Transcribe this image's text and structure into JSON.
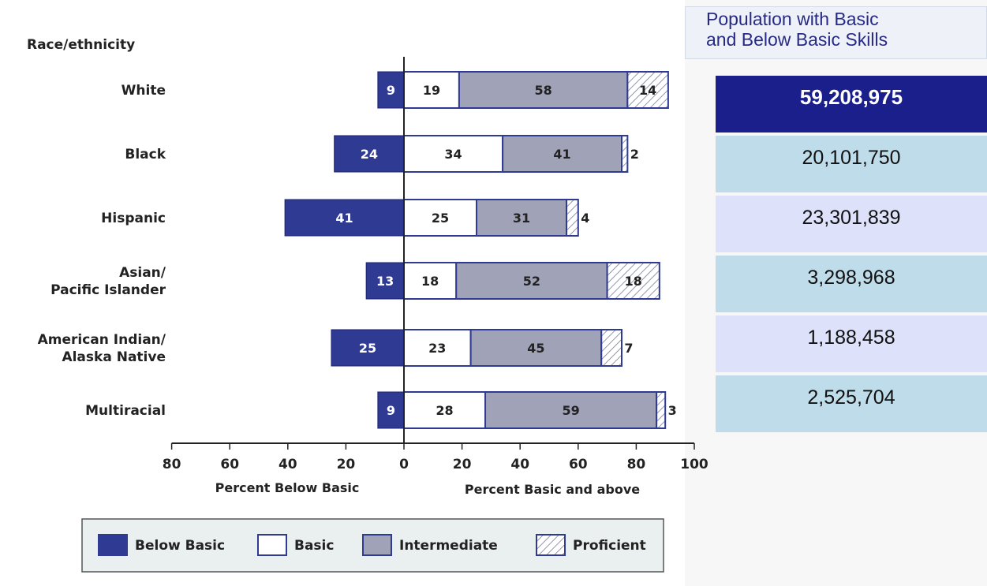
{
  "chart_data": {
    "type": "bar",
    "orientation": "horizontal",
    "stacked": true,
    "y_axis_title": "Race/ethnicity",
    "categories": [
      "White",
      "Black",
      "Hispanic",
      "Asian/\nPacific Islander",
      "American Indian/\nAlaska Native",
      "Multiracial"
    ],
    "series": [
      {
        "name": "Below Basic",
        "values": [
          9,
          24,
          41,
          13,
          25,
          9
        ],
        "color": "#2f3a93",
        "side": "left"
      },
      {
        "name": "Basic",
        "values": [
          19,
          34,
          25,
          18,
          23,
          28
        ],
        "color": "#ffffff",
        "side": "right"
      },
      {
        "name": "Intermediate",
        "values": [
          58,
          41,
          31,
          52,
          45,
          59
        ],
        "color": "#a0a3b7",
        "side": "right"
      },
      {
        "name": "Proficient",
        "values": [
          14,
          2,
          4,
          18,
          7,
          3
        ],
        "color": "hatch",
        "side": "right"
      }
    ],
    "x_ticks": [
      "80",
      "60",
      "40",
      "20",
      "0",
      "20",
      "40",
      "60",
      "80",
      "100"
    ],
    "x_range": [
      -80,
      100
    ],
    "xlabel_left": "Percent Below Basic",
    "xlabel_right": "Percent Basic and above",
    "legend_position": "bottom",
    "grid": false
  },
  "population_panel": {
    "title": "Population with Basic\nand Below Basic Skills",
    "values": [
      "59,208,975",
      "20,101,750",
      "23,301,839",
      "3,298,968",
      "1,188,458",
      "2,525,704"
    ],
    "colors": [
      "#1a1f8c",
      "#bfdcea",
      "#dee1fa",
      "#bfdcea",
      "#dee1fa",
      "#bfdcea"
    ]
  }
}
